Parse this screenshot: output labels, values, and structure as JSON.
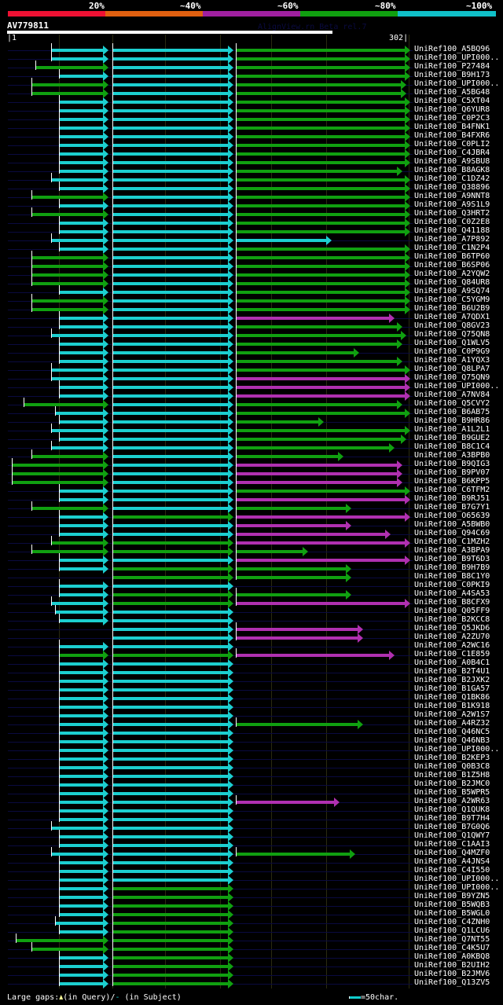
{
  "legend": {
    "labels": [
      "20%",
      "~40%",
      "~60%",
      "~80%",
      "~100%"
    ],
    "colors": [
      "#ee1133",
      "#e06010",
      "#a020a0",
      "#10a010",
      "#10c0c8"
    ]
  },
  "query": {
    "name": "AV779811",
    "version": "AlignView.rn Beta rel.7",
    "start": "1",
    "end": "302"
  },
  "colors": {
    "c": "#1ccfd0",
    "g": "#10a010",
    "m": "#b030b0"
  },
  "rows": [
    {
      "label": "UniRef100_A5BQ96",
      "a": [
        65,
        "c"
      ],
      "b": "c",
      "c": [
        515,
        "g"
      ]
    },
    {
      "label": "UniRef100_UPI000..",
      "a": [
        65,
        "c"
      ],
      "b": "c",
      "c": [
        515,
        "g"
      ]
    },
    {
      "label": "UniRef100_P27484",
      "a": [
        45,
        "g"
      ],
      "b": "c",
      "c": [
        515,
        "g"
      ]
    },
    {
      "label": "UniRef100_B9H173",
      "a": [
        75,
        "c"
      ],
      "b": "c",
      "c": [
        515,
        "g"
      ]
    },
    {
      "label": "UniRef100_UPI000..",
      "a": [
        40,
        "g"
      ],
      "b": "c",
      "c": [
        510,
        "g"
      ]
    },
    {
      "label": "UniRef100_A5BG48",
      "a": [
        40,
        "g"
      ],
      "b": "c",
      "c": [
        510,
        "g"
      ]
    },
    {
      "label": "UniRef100_C5XT04",
      "a": [
        75,
        "c"
      ],
      "b": "c",
      "c": [
        515,
        "g"
      ]
    },
    {
      "label": "UniRef100_Q6YUR8",
      "a": [
        75,
        "c"
      ],
      "b": "c",
      "c": [
        515,
        "g"
      ]
    },
    {
      "label": "UniRef100_C0P2C3",
      "a": [
        75,
        "c"
      ],
      "b": "c",
      "c": [
        515,
        "g"
      ]
    },
    {
      "label": "UniRef100_B4FNK1",
      "a": [
        75,
        "c"
      ],
      "b": "c",
      "c": [
        515,
        "g"
      ]
    },
    {
      "label": "UniRef100_B4FXR6",
      "a": [
        75,
        "c"
      ],
      "b": "c",
      "c": [
        515,
        "g"
      ]
    },
    {
      "label": "UniRef100_C0PLI2",
      "a": [
        75,
        "c"
      ],
      "b": "c",
      "c": [
        515,
        "g"
      ]
    },
    {
      "label": "UniRef100_C4JBR4",
      "a": [
        75,
        "c"
      ],
      "b": "c",
      "c": [
        515,
        "g"
      ]
    },
    {
      "label": "UniRef100_A9SBU8",
      "a": [
        75,
        "c"
      ],
      "b": "c",
      "c": [
        515,
        "g"
      ]
    },
    {
      "label": "UniRef100_B8AGK8",
      "a": [
        75,
        "c"
      ],
      "b": "c",
      "c": [
        505,
        "g"
      ]
    },
    {
      "label": "UniRef100_C1DZ42",
      "a": [
        65,
        "c"
      ],
      "b": "c",
      "c": [
        515,
        "g"
      ]
    },
    {
      "label": "UniRef100_Q38896",
      "a": [
        75,
        "c"
      ],
      "b": "c",
      "c": [
        515,
        "g"
      ]
    },
    {
      "label": "UniRef100_A9NNT8",
      "a": [
        40,
        "g"
      ],
      "b": "c",
      "c": [
        515,
        "g"
      ]
    },
    {
      "label": "UniRef100_A9S1L9",
      "a": [
        75,
        "c"
      ],
      "b": "c",
      "c": [
        515,
        "g"
      ]
    },
    {
      "label": "UniRef100_Q3HRT2",
      "a": [
        40,
        "g"
      ],
      "b": "c",
      "c": [
        515,
        "g"
      ]
    },
    {
      "label": "UniRef100_C0Z2E8",
      "a": [
        75,
        "c"
      ],
      "b": "c",
      "c": [
        515,
        "g"
      ]
    },
    {
      "label": "UniRef100_Q41188",
      "a": [
        75,
        "c"
      ],
      "b": "c",
      "c": [
        515,
        "g"
      ]
    },
    {
      "label": "UniRef100_A7P892",
      "a": [
        65,
        "c"
      ],
      "b": "c",
      "c": [
        415,
        "c"
      ]
    },
    {
      "label": "UniRef100_C1N2P4",
      "a": [
        75,
        "c"
      ],
      "b": "c",
      "c": [
        515,
        "g"
      ]
    },
    {
      "label": "UniRef100_B6TP60",
      "a": [
        40,
        "g"
      ],
      "b": "c",
      "c": [
        515,
        "g"
      ]
    },
    {
      "label": "UniRef100_B6SP06",
      "a": [
        40,
        "g"
      ],
      "b": "c",
      "c": [
        515,
        "g"
      ]
    },
    {
      "label": "UniRef100_A2YQW2",
      "a": [
        40,
        "g"
      ],
      "b": "c",
      "c": [
        515,
        "g"
      ]
    },
    {
      "label": "UniRef100_Q84UR8",
      "a": [
        40,
        "g"
      ],
      "b": "c",
      "c": [
        515,
        "g"
      ]
    },
    {
      "label": "UniRef100_A9SQ74",
      "a": [
        75,
        "c"
      ],
      "b": "c",
      "c": [
        515,
        "g"
      ]
    },
    {
      "label": "UniRef100_C5YGM9",
      "a": [
        40,
        "g"
      ],
      "b": "c",
      "c": [
        515,
        "g"
      ]
    },
    {
      "label": "UniRef100_B6U2B9",
      "a": [
        40,
        "g"
      ],
      "b": "c",
      "c": [
        515,
        "g"
      ]
    },
    {
      "label": "UniRef100_A7QDX1",
      "a": [
        75,
        "c"
      ],
      "b": "c",
      "c": [
        495,
        "m"
      ]
    },
    {
      "label": "UniRef100_Q8GV23",
      "a": [
        75,
        "c"
      ],
      "b": "c",
      "c": [
        505,
        "g"
      ]
    },
    {
      "label": "UniRef100_Q75QN8",
      "a": [
        65,
        "c"
      ],
      "b": "c",
      "c": [
        510,
        "g"
      ]
    },
    {
      "label": "UniRef100_Q1WLV5",
      "a": [
        75,
        "c"
      ],
      "b": "c",
      "c": [
        505,
        "g"
      ]
    },
    {
      "label": "UniRef100_C0P9G9",
      "a": [
        75,
        "c"
      ],
      "b": "c",
      "c": [
        450,
        "g"
      ]
    },
    {
      "label": "UniRef100_A1YQX3",
      "a": [
        75,
        "c"
      ],
      "b": "c",
      "c": [
        505,
        "g"
      ]
    },
    {
      "label": "UniRef100_Q8LPA7",
      "a": [
        65,
        "c"
      ],
      "b": "c",
      "c": [
        515,
        "g"
      ]
    },
    {
      "label": "UniRef100_Q75QN9",
      "a": [
        65,
        "c"
      ],
      "b": "c",
      "c": [
        515,
        "m"
      ]
    },
    {
      "label": "UniRef100_UPI000..",
      "a": [
        75,
        "c"
      ],
      "b": "c",
      "c": [
        515,
        "m"
      ]
    },
    {
      "label": "UniRef100_A7NV84",
      "a": [
        75,
        "c"
      ],
      "b": "c",
      "c": [
        515,
        "m"
      ]
    },
    {
      "label": "UniRef100_Q5CVY2",
      "a": [
        30,
        "g"
      ],
      "b": "c",
      "c": [
        505,
        "g"
      ]
    },
    {
      "label": "UniRef100_B6AB75",
      "a": [
        70,
        "c"
      ],
      "b": "c",
      "c": [
        515,
        "g"
      ]
    },
    {
      "label": "UniRef100_B9HR86",
      "a": [
        75,
        "c"
      ],
      "b": "c",
      "c": [
        405,
        "g"
      ]
    },
    {
      "label": "UniRef100_A1L2L1",
      "a": [
        65,
        "c"
      ],
      "b": "c",
      "c": [
        515,
        "g"
      ]
    },
    {
      "label": "UniRef100_B9GUE2",
      "a": [
        75,
        "c"
      ],
      "b": "c",
      "c": [
        510,
        "g"
      ]
    },
    {
      "label": "UniRef100_B8C1C4",
      "a": [
        65,
        "c"
      ],
      "b": "c",
      "c": [
        495,
        "g"
      ]
    },
    {
      "label": "UniRef100_A3BPB0",
      "a": [
        40,
        "g"
      ],
      "b": "c",
      "c": [
        430,
        "g"
      ]
    },
    {
      "label": "UniRef100_B9QIG3",
      "a": [
        15,
        "g"
      ],
      "b": "c",
      "c": [
        505,
        "m"
      ]
    },
    {
      "label": "UniRef100_B9PV07",
      "a": [
        15,
        "g"
      ],
      "b": "c",
      "c": [
        505,
        "m"
      ]
    },
    {
      "label": "UniRef100_B6KPP5",
      "a": [
        15,
        "g"
      ],
      "b": "c",
      "c": [
        505,
        "m"
      ]
    },
    {
      "label": "UniRef100_C6TFM2",
      "a": [
        75,
        "c"
      ],
      "b": "c",
      "c": [
        515,
        "g"
      ]
    },
    {
      "label": "UniRef100_B9RJ51",
      "a": [
        75,
        "c"
      ],
      "b": "c",
      "c": [
        515,
        "m"
      ]
    },
    {
      "label": "UniRef100_B7G7Y1",
      "a": [
        40,
        "g"
      ],
      "b": "c",
      "c": [
        440,
        "g"
      ]
    },
    {
      "label": "UniRef100_O65639",
      "a": [
        75,
        "c"
      ],
      "b": "g",
      "c": [
        515,
        "m"
      ]
    },
    {
      "label": "UniRef100_A5BWB0",
      "a": [
        75,
        "c"
      ],
      "b": "c",
      "c": [
        440,
        "m"
      ]
    },
    {
      "label": "UniRef100_Q94C69",
      "a": [
        75,
        "c"
      ],
      "b": "c",
      "c": [
        490,
        "m"
      ]
    },
    {
      "label": "UniRef100_C1MZH2",
      "a": [
        65,
        "g"
      ],
      "b": "g",
      "c": [
        515,
        "m"
      ]
    },
    {
      "label": "UniRef100_A3BPA9",
      "a": [
        40,
        "g"
      ],
      "b": "g",
      "c": [
        385,
        "g"
      ]
    },
    {
      "label": "UniRef100_B9T6D3",
      "a": [
        75,
        "c"
      ],
      "b": "c",
      "c": [
        515,
        "m"
      ]
    },
    {
      "label": "UniRef100_B9H7B9",
      "a": [
        75,
        "c"
      ],
      "b": "g",
      "c": [
        440,
        "g"
      ]
    },
    {
      "label": "UniRef100_B8C1Y0",
      "a": [
        null,
        ""
      ],
      "b": "g",
      "c": [
        440,
        "g"
      ]
    },
    {
      "label": "UniRef100_C0PKI9",
      "a": [
        75,
        "c"
      ],
      "b": "c",
      "c": [
        null,
        ""
      ]
    },
    {
      "label": "UniRef100_A4SA53",
      "a": [
        75,
        "c"
      ],
      "b": "g",
      "c": [
        440,
        "g"
      ]
    },
    {
      "label": "UniRef100_B8CFX9",
      "a": [
        65,
        "c"
      ],
      "b": "g",
      "c": [
        515,
        "m"
      ]
    },
    {
      "label": "UniRef100_Q05FF9",
      "a": [
        70,
        "c"
      ],
      "b": "c",
      "c": [
        null,
        ""
      ]
    },
    {
      "label": "UniRef100_B2KCC8",
      "a": [
        75,
        "c"
      ],
      "b": "c",
      "c": [
        null,
        ""
      ]
    },
    {
      "label": "UniRef100_Q5JKD6",
      "a": [
        null,
        ""
      ],
      "b": "c",
      "c": [
        455,
        "m"
      ]
    },
    {
      "label": "UniRef100_A2ZU70",
      "a": [
        null,
        ""
      ],
      "b": "c",
      "c": [
        455,
        "m"
      ]
    },
    {
      "label": "UniRef100_A2WC16",
      "a": [
        75,
        "c"
      ],
      "b": "c",
      "c": [
        null,
        ""
      ]
    },
    {
      "label": "UniRef100_C1E859",
      "a": [
        75,
        "g"
      ],
      "b": "g",
      "c": [
        495,
        "m"
      ]
    },
    {
      "label": "UniRef100_A0B4C1",
      "a": [
        75,
        "c"
      ],
      "b": "c",
      "c": [
        null,
        ""
      ]
    },
    {
      "label": "UniRef100_B2T4U1",
      "a": [
        75,
        "c"
      ],
      "b": "c",
      "c": [
        null,
        ""
      ]
    },
    {
      "label": "UniRef100_B2JXK2",
      "a": [
        75,
        "c"
      ],
      "b": "c",
      "c": [
        null,
        ""
      ]
    },
    {
      "label": "UniRef100_B1GA57",
      "a": [
        75,
        "c"
      ],
      "b": "c",
      "c": [
        null,
        ""
      ]
    },
    {
      "label": "UniRef100_Q1BK86",
      "a": [
        75,
        "c"
      ],
      "b": "c",
      "c": [
        null,
        ""
      ]
    },
    {
      "label": "UniRef100_B1K918",
      "a": [
        75,
        "c"
      ],
      "b": "c",
      "c": [
        null,
        ""
      ]
    },
    {
      "label": "UniRef100_A2W1S7",
      "a": [
        75,
        "c"
      ],
      "b": "c",
      "c": [
        null,
        ""
      ]
    },
    {
      "label": "UniRef100_A4RZ32",
      "a": [
        75,
        "c"
      ],
      "b": "c",
      "c": [
        455,
        "g"
      ]
    },
    {
      "label": "UniRef100_Q46NC5",
      "a": [
        75,
        "c"
      ],
      "b": "c",
      "c": [
        null,
        ""
      ]
    },
    {
      "label": "UniRef100_Q46NB3",
      "a": [
        75,
        "c"
      ],
      "b": "c",
      "c": [
        null,
        ""
      ]
    },
    {
      "label": "UniRef100_UPI000..",
      "a": [
        75,
        "c"
      ],
      "b": "c",
      "c": [
        null,
        ""
      ]
    },
    {
      "label": "UniRef100_B2KEP3",
      "a": [
        75,
        "c"
      ],
      "b": "c",
      "c": [
        null,
        ""
      ]
    },
    {
      "label": "UniRef100_Q0B3C8",
      "a": [
        75,
        "c"
      ],
      "b": "c",
      "c": [
        null,
        ""
      ]
    },
    {
      "label": "UniRef100_B1Z5H8",
      "a": [
        75,
        "c"
      ],
      "b": "c",
      "c": [
        null,
        ""
      ]
    },
    {
      "label": "UniRef100_B2JMC0",
      "a": [
        75,
        "c"
      ],
      "b": "c",
      "c": [
        null,
        ""
      ]
    },
    {
      "label": "UniRef100_B5WPR5",
      "a": [
        75,
        "c"
      ],
      "b": "c",
      "c": [
        null,
        ""
      ]
    },
    {
      "label": "UniRef100_A2WR63",
      "a": [
        75,
        "c"
      ],
      "b": "c",
      "c": [
        425,
        "m"
      ]
    },
    {
      "label": "UniRef100_Q1QUK8",
      "a": [
        75,
        "c"
      ],
      "b": "c",
      "c": [
        null,
        ""
      ]
    },
    {
      "label": "UniRef100_B9T7H4",
      "a": [
        75,
        "c"
      ],
      "b": "c",
      "c": [
        null,
        ""
      ]
    },
    {
      "label": "UniRef100_B7G0Q6",
      "a": [
        65,
        "c"
      ],
      "b": "c",
      "c": [
        null,
        ""
      ]
    },
    {
      "label": "UniRef100_Q1QWY7",
      "a": [
        75,
        "c"
      ],
      "b": "c",
      "c": [
        null,
        ""
      ]
    },
    {
      "label": "UniRef100_C1AAI3",
      "a": [
        75,
        "c"
      ],
      "b": "c",
      "c": [
        null,
        ""
      ]
    },
    {
      "label": "UniRef100_Q4MZF0",
      "a": [
        65,
        "c"
      ],
      "b": "c",
      "c": [
        445,
        "g"
      ]
    },
    {
      "label": "UniRef100_A4JNS4",
      "a": [
        75,
        "c"
      ],
      "b": "c",
      "c": [
        null,
        ""
      ]
    },
    {
      "label": "UniRef100_C4I550",
      "a": [
        75,
        "c"
      ],
      "b": "c",
      "c": [
        null,
        ""
      ]
    },
    {
      "label": "UniRef100_UPI000..",
      "a": [
        75,
        "c"
      ],
      "b": "c",
      "c": [
        null,
        ""
      ]
    },
    {
      "label": "UniRef100_UPI000..",
      "a": [
        75,
        "c"
      ],
      "b": "g",
      "c": [
        null,
        ""
      ]
    },
    {
      "label": "UniRef100_B9YZN5",
      "a": [
        75,
        "c"
      ],
      "b": "g",
      "c": [
        null,
        ""
      ]
    },
    {
      "label": "UniRef100_B5WQB3",
      "a": [
        75,
        "c"
      ],
      "b": "g",
      "c": [
        null,
        ""
      ]
    },
    {
      "label": "UniRef100_B5WGL0",
      "a": [
        75,
        "c"
      ],
      "b": "g",
      "c": [
        null,
        ""
      ]
    },
    {
      "label": "UniRef100_C4ZNH0",
      "a": [
        70,
        "c"
      ],
      "b": "g",
      "c": [
        null,
        ""
      ]
    },
    {
      "label": "UniRef100_Q1LCU6",
      "a": [
        75,
        "c"
      ],
      "b": "g",
      "c": [
        null,
        ""
      ]
    },
    {
      "label": "UniRef100_Q7NT55",
      "a": [
        20,
        "g"
      ],
      "b": "g",
      "c": [
        null,
        ""
      ]
    },
    {
      "label": "UniRef100_C4K5U7",
      "a": [
        40,
        "g"
      ],
      "b": "g",
      "c": [
        null,
        ""
      ]
    },
    {
      "label": "UniRef100_A0KBQ8",
      "a": [
        75,
        "c"
      ],
      "b": "g",
      "c": [
        null,
        ""
      ]
    },
    {
      "label": "UniRef100_B2UIH2",
      "a": [
        75,
        "c"
      ],
      "b": "g",
      "c": [
        null,
        ""
      ]
    },
    {
      "label": "UniRef100_B2JMV6",
      "a": [
        75,
        "c"
      ],
      "b": "g",
      "c": [
        null,
        ""
      ]
    },
    {
      "label": "UniRef100_Q13ZV5",
      "a": [
        75,
        "c"
      ],
      "b": "g",
      "c": [
        null,
        ""
      ]
    }
  ],
  "footer": {
    "gaps_label": "Large gaps:",
    "query_gap": "(in Query)/",
    "subject_gap_symbol": "-",
    "subject_gap": " (in Subject)",
    "scale_label": "=50char."
  }
}
